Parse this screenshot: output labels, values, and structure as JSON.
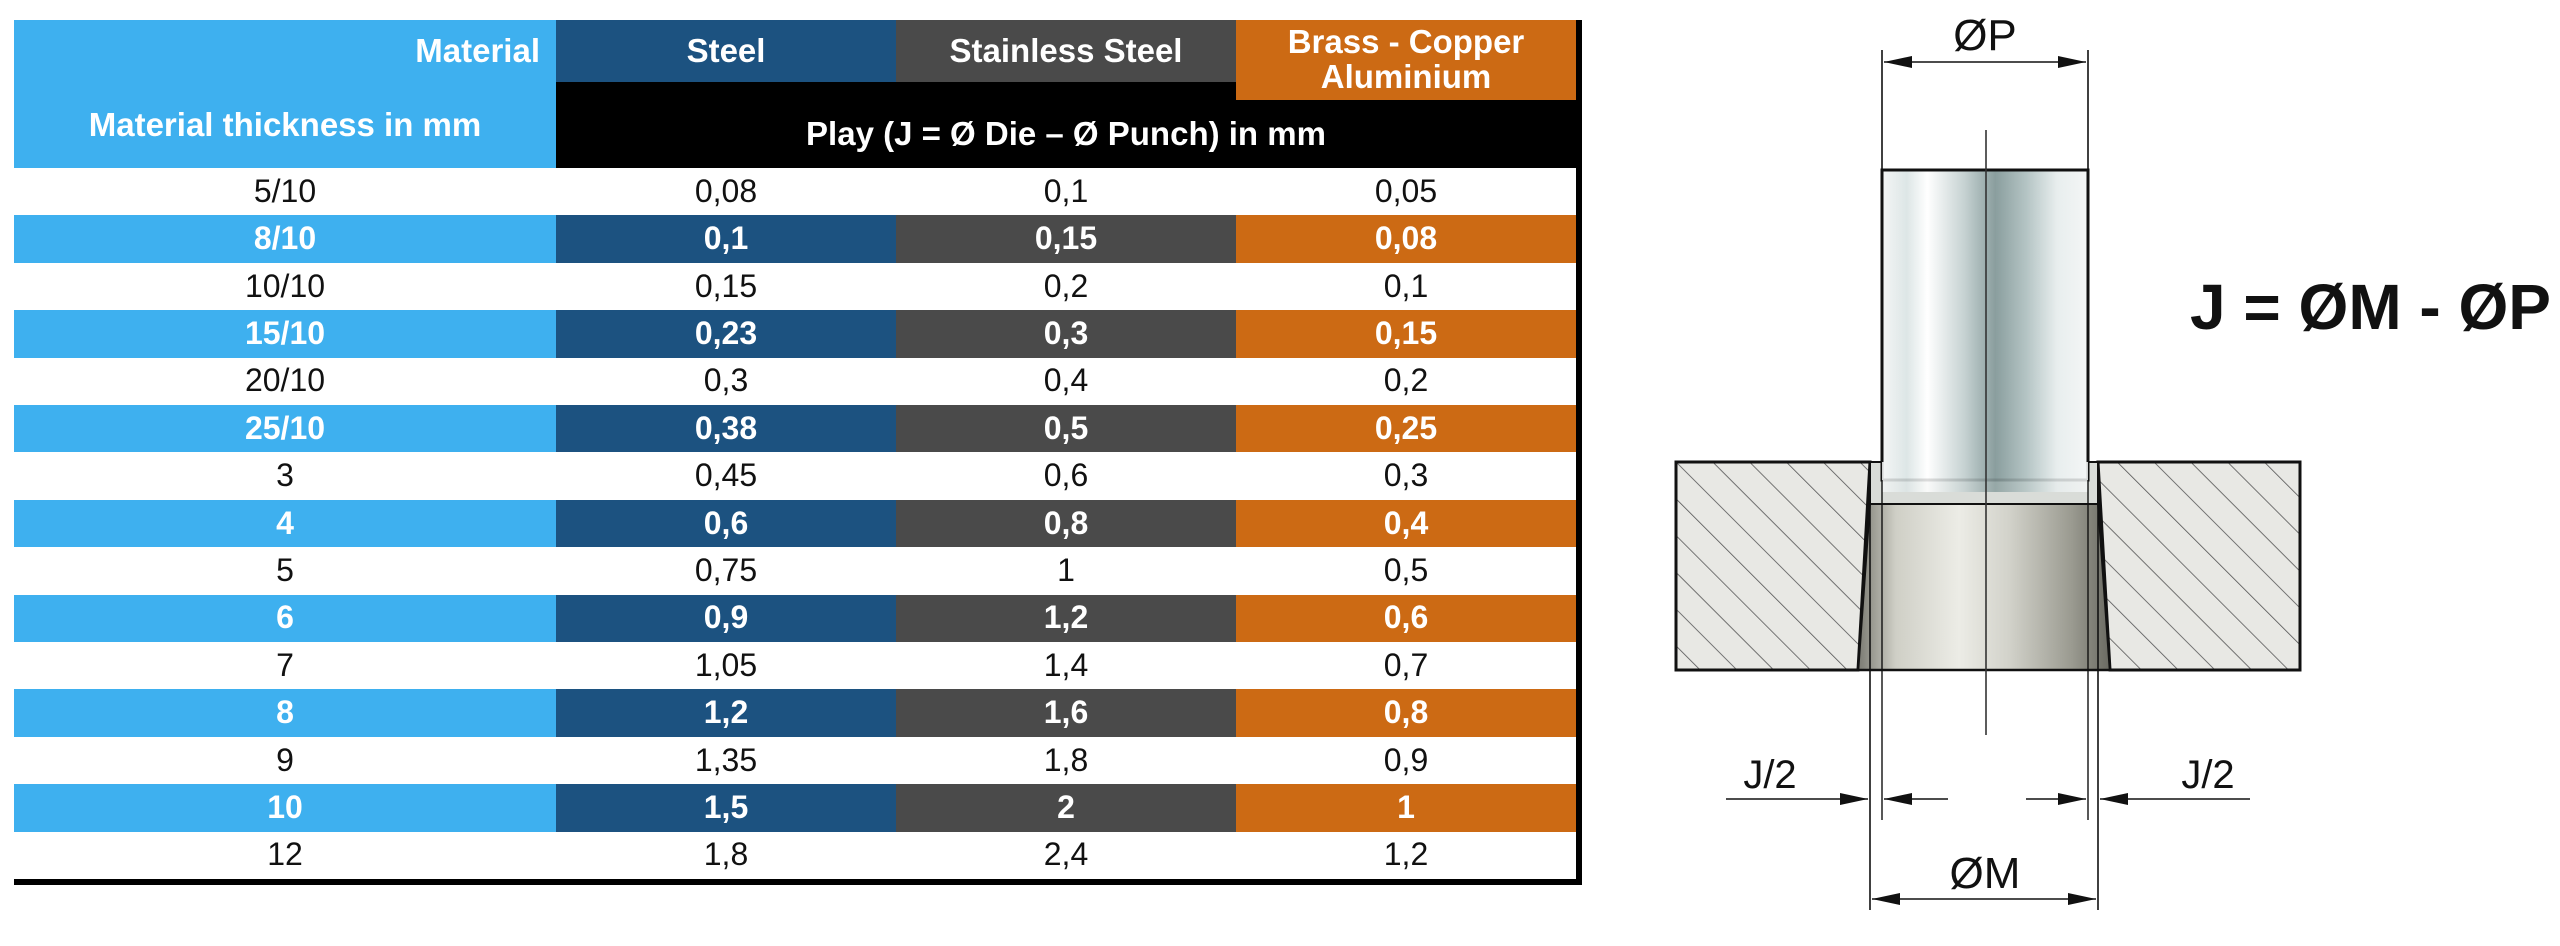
{
  "table": {
    "header": {
      "material_label": "Material",
      "thickness_label": "Material thickness in mm",
      "play_label": "Play (J = Ø Die – Ø Punch) in mm",
      "columns": [
        {
          "label_line1": "Steel",
          "label_line2": ""
        },
        {
          "label_line1": "Stainless Steel",
          "label_line2": ""
        },
        {
          "label_line1": "Brass - Copper",
          "label_line2": "Aluminium"
        }
      ]
    },
    "rows": [
      {
        "thickness": "5/10",
        "steel": "0,08",
        "stainless": "0,1",
        "brass": "0,05"
      },
      {
        "thickness": "8/10",
        "steel": "0,1",
        "stainless": "0,15",
        "brass": "0,08"
      },
      {
        "thickness": "10/10",
        "steel": "0,15",
        "stainless": "0,2",
        "brass": "0,1"
      },
      {
        "thickness": "15/10",
        "steel": "0,23",
        "stainless": "0,3",
        "brass": "0,15"
      },
      {
        "thickness": "20/10",
        "steel": "0,3",
        "stainless": "0,4",
        "brass": "0,2"
      },
      {
        "thickness": "25/10",
        "steel": "0,38",
        "stainless": "0,5",
        "brass": "0,25"
      },
      {
        "thickness": "3",
        "steel": "0,45",
        "stainless": "0,6",
        "brass": "0,3"
      },
      {
        "thickness": "4",
        "steel": "0,6",
        "stainless": "0,8",
        "brass": "0,4"
      },
      {
        "thickness": "5",
        "steel": "0,75",
        "stainless": "1",
        "brass": "0,5"
      },
      {
        "thickness": "6",
        "steel": "0,9",
        "stainless": "1,2",
        "brass": "0,6"
      },
      {
        "thickness": "7",
        "steel": "1,05",
        "stainless": "1,4",
        "brass": "0,7"
      },
      {
        "thickness": "8",
        "steel": "1,2",
        "stainless": "1,6",
        "brass": "0,8"
      },
      {
        "thickness": "9",
        "steel": "1,35",
        "stainless": "1,8",
        "brass": "0,9"
      },
      {
        "thickness": "10",
        "steel": "1,5",
        "stainless": "2",
        "brass": "1"
      },
      {
        "thickness": "12",
        "steel": "1,8",
        "stainless": "2,4",
        "brass": "1,2"
      }
    ]
  },
  "diagram": {
    "punch_label": "ØP",
    "die_label": "ØM",
    "left_gap_label": "J/2",
    "right_gap_label": "J/2",
    "formula": "J =  ØM - ØP"
  },
  "colors": {
    "light_blue": "#3eb0ef",
    "steel_blue": "#1c5280",
    "stainless_grey": "#4a4a4a",
    "brass_orange": "#cc6a14",
    "frame_black": "#000000"
  }
}
